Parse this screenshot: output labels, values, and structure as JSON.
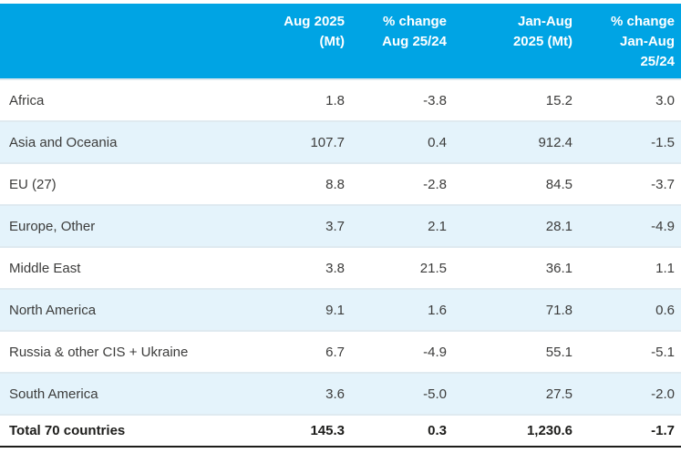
{
  "chart_data": {
    "type": "table",
    "title": "",
    "region_column_header": "",
    "column_headers": [
      "Aug 2025\n(Mt)",
      "% change\nAug 25/24",
      "Jan-Aug\n2025 (Mt)",
      "% change\nJan-Aug\n25/24"
    ],
    "rows": [
      {
        "region": "Africa",
        "values": [
          "1.8",
          "-3.8",
          "15.2",
          "3.0"
        ]
      },
      {
        "region": "Asia and Oceania",
        "values": [
          "107.7",
          "0.4",
          "912.4",
          "-1.5"
        ]
      },
      {
        "region": "EU (27)",
        "values": [
          "8.8",
          "-2.8",
          "84.5",
          "-3.7"
        ]
      },
      {
        "region": "Europe, Other",
        "values": [
          "3.7",
          "2.1",
          "28.1",
          "-4.9"
        ]
      },
      {
        "region": "Middle East",
        "values": [
          "3.8",
          "21.5",
          "36.1",
          "1.1"
        ]
      },
      {
        "region": "North America",
        "values": [
          "9.1",
          "1.6",
          "71.8",
          "0.6"
        ]
      },
      {
        "region": "Russia & other CIS + Ukraine",
        "values": [
          "6.7",
          "-4.9",
          "55.1",
          "-5.1"
        ]
      },
      {
        "region": "South America",
        "values": [
          "3.6",
          "-5.0",
          "27.5",
          "-2.0"
        ]
      }
    ],
    "total": {
      "region": "Total 70 countries",
      "values": [
        "145.3",
        "0.3",
        "1,230.6",
        "-1.7"
      ]
    },
    "colors": {
      "header_bg": "#00A4E4",
      "header_text": "#FFFFFF",
      "alt_row_bg": "#E4F3FB",
      "row_border": "#DFEAF0",
      "body_text": "#3C3C3B",
      "total_border_top": "#55606A",
      "total_border_bottom": "#1D1D1B"
    }
  }
}
